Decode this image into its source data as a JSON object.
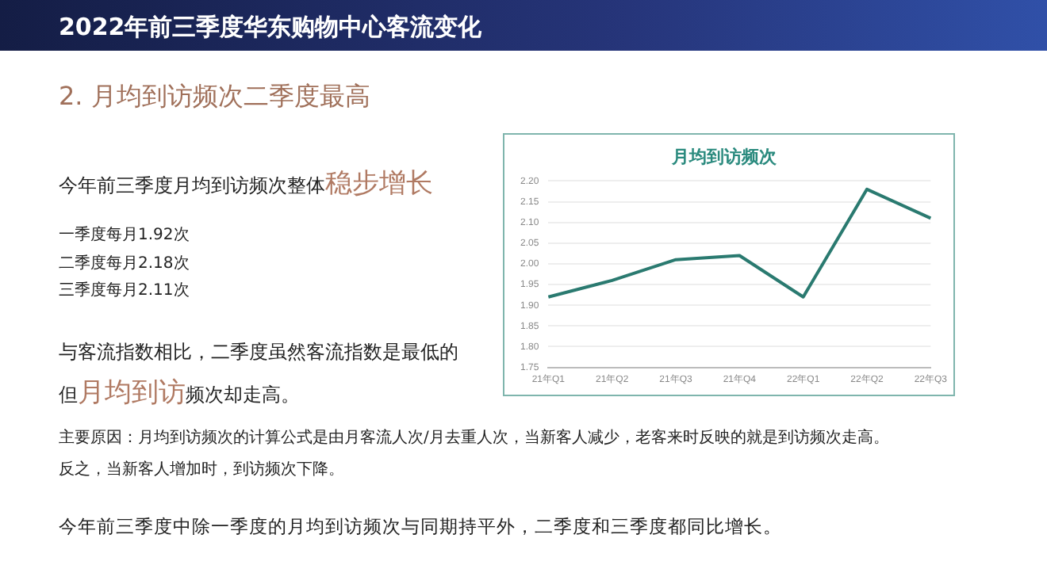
{
  "chart_data": {
    "type": "line",
    "title": "月均到访频次",
    "categories": [
      "21年Q1",
      "21年Q2",
      "21年Q3",
      "21年Q4",
      "22年Q1",
      "22年Q2",
      "22年Q3"
    ],
    "series": [
      {
        "color": "#2a7a70",
        "values": [
          1.92,
          1.96,
          2.01,
          2.02,
          1.92,
          2.18,
          2.11
        ]
      }
    ],
    "ylim": [
      1.75,
      2.2
    ],
    "yticks": [
      {
        "value": 1.75,
        "label": "1.75"
      },
      {
        "value": 1.8,
        "label": "1.80"
      },
      {
        "value": 1.85,
        "label": "1.85"
      },
      {
        "value": 1.9,
        "label": "1.90"
      },
      {
        "value": 1.95,
        "label": "1.95"
      },
      {
        "value": 2.0,
        "label": "2.00"
      },
      {
        "value": 2.05,
        "label": "2.05"
      },
      {
        "value": 2.1,
        "label": "2.10"
      },
      {
        "value": 2.15,
        "label": "2.15"
      },
      {
        "value": 2.2,
        "label": "2.20"
      }
    ],
    "grid": "y",
    "legend": false,
    "marker": "none",
    "line_style": "solid",
    "annotations": [
      "2022年前三季度华东购物中心客流变化",
      "2. 月均到访频次二季度最高",
      "今年前三季度月均到访频次整体",
      "稳步增长",
      "一季度每月1.92次",
      "二季度每月2.18次",
      "三季度每月2.11次",
      "与客流指数相比，二季度虽然客流指数是最低的",
      "但",
      "月均到访",
      "频次却走高。",
      "主要原因：月均到访频次的计算公式是由月客流人次/月去重人次，当新客人减少，老客来时反映的就是到访频次走高。",
      "反之，当新客人增加时，到访频次下降。",
      "今年前三季度中除一季度的月均到访频次与同期持平外，二季度和三季度都同比增长。"
    ]
  }
}
